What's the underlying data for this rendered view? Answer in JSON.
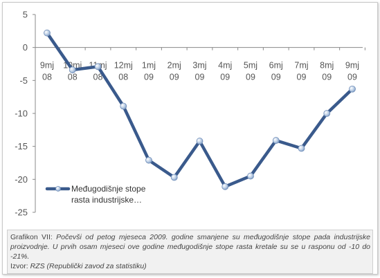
{
  "chart_data": {
    "type": "line",
    "categories": [
      [
        "9mj",
        "08"
      ],
      [
        "10mj",
        "08"
      ],
      [
        "11mj",
        "08"
      ],
      [
        "12mj",
        "08"
      ],
      [
        "1mj",
        "09"
      ],
      [
        "2mj",
        "09"
      ],
      [
        "3mj",
        "09"
      ],
      [
        "4mj",
        "09"
      ],
      [
        "5mj",
        "09"
      ],
      [
        "6mj",
        "09"
      ],
      [
        "7mj",
        "09"
      ],
      [
        "8mj",
        "09"
      ],
      [
        "9mj",
        "09"
      ]
    ],
    "series": [
      {
        "name": "Međugodišnje stope rasta industrijske…",
        "values": [
          2.2,
          -3.4,
          -2.9,
          -8.9,
          -17.1,
          -19.7,
          -14.2,
          -21.1,
          -19.5,
          -14.1,
          -15.3,
          -10.0,
          -6.3
        ]
      }
    ],
    "ylim": [
      -25,
      5
    ],
    "yticks": [
      5,
      0,
      -5,
      -10,
      -15,
      -20,
      -25
    ],
    "grid": false,
    "legend_position": "lower-left",
    "line_color": "#3a5a8c"
  },
  "legend": {
    "line1": "Međugodišnje stope",
    "line2": "rasta industrijske…"
  },
  "caption": {
    "label": "Grafikon VII:",
    "text": "Počevši od petog mjeseca 2009. godine smanjene su međugodišnje stope pada industrijske proizvodnje. U prvih osam mjeseci ove godine međugodišnje stope rasta kretale su se u rasponu od -10 do -21%.",
    "source_label": "Izvor:",
    "source_text": "RZS (Republički zavod za statistiku)"
  }
}
